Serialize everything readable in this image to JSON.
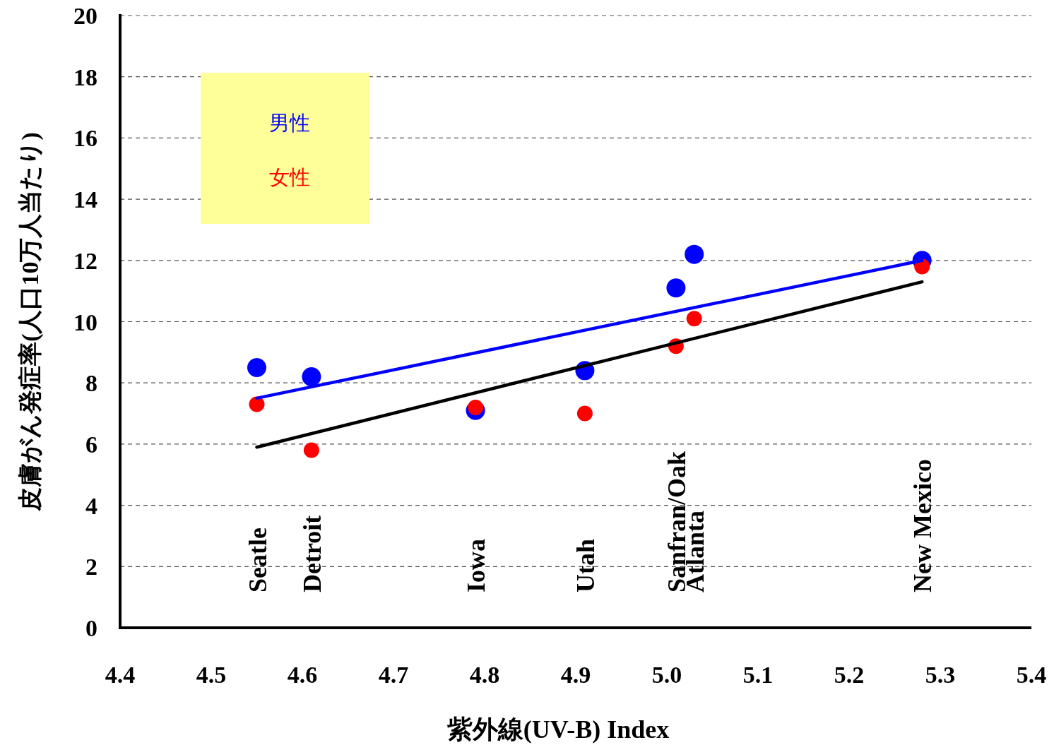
{
  "chart_data": {
    "type": "scatter",
    "xlabel": "紫外線(UV-B) Index",
    "ylabel": "皮膚がん発症率(人口10万人当たり)",
    "xlim": [
      4.4,
      5.4
    ],
    "xticks": [
      4.4,
      4.5,
      4.6,
      4.7,
      4.8,
      4.9,
      {
        "value": 5.0,
        "label": "5.0"
      },
      5.1,
      5.2,
      5.3,
      5.4
    ],
    "ylim": [
      0,
      20
    ],
    "yticks": [
      0,
      2,
      4,
      6,
      8,
      10,
      12,
      14,
      16,
      18,
      20
    ],
    "grid": "y",
    "legend": "top left",
    "series": [
      {
        "name": "男性",
        "marker": "circle",
        "color": "#0000ff",
        "x": [
          4.55,
          4.61,
          4.79,
          4.91,
          5.01,
          5.03,
          5.28
        ],
        "values": [
          8.5,
          8.2,
          7.1,
          8.4,
          11.1,
          12.2,
          12.0
        ]
      },
      {
        "name": "女性",
        "marker": "circle",
        "color": "#ff0000",
        "x": [
          4.55,
          4.61,
          4.79,
          4.91,
          5.01,
          5.03,
          5.28
        ],
        "values": [
          7.3,
          5.8,
          7.2,
          7.0,
          9.2,
          10.1,
          11.8
        ]
      },
      {
        "type": "line",
        "marker": "none",
        "color": "#0000ff",
        "x": [
          4.55,
          5.28
        ],
        "values": [
          7.5,
          12.0
        ]
      },
      {
        "type": "line",
        "marker": "none",
        "color": "#000000",
        "x": [
          4.55,
          5.28
        ],
        "values": [
          5.9,
          11.3
        ]
      }
    ],
    "annotations": [
      "Seatle",
      "Detroit",
      "Iowa",
      "Utah",
      "Sanfran/Oak",
      "Atlanta",
      "New Mexico"
    ]
  }
}
